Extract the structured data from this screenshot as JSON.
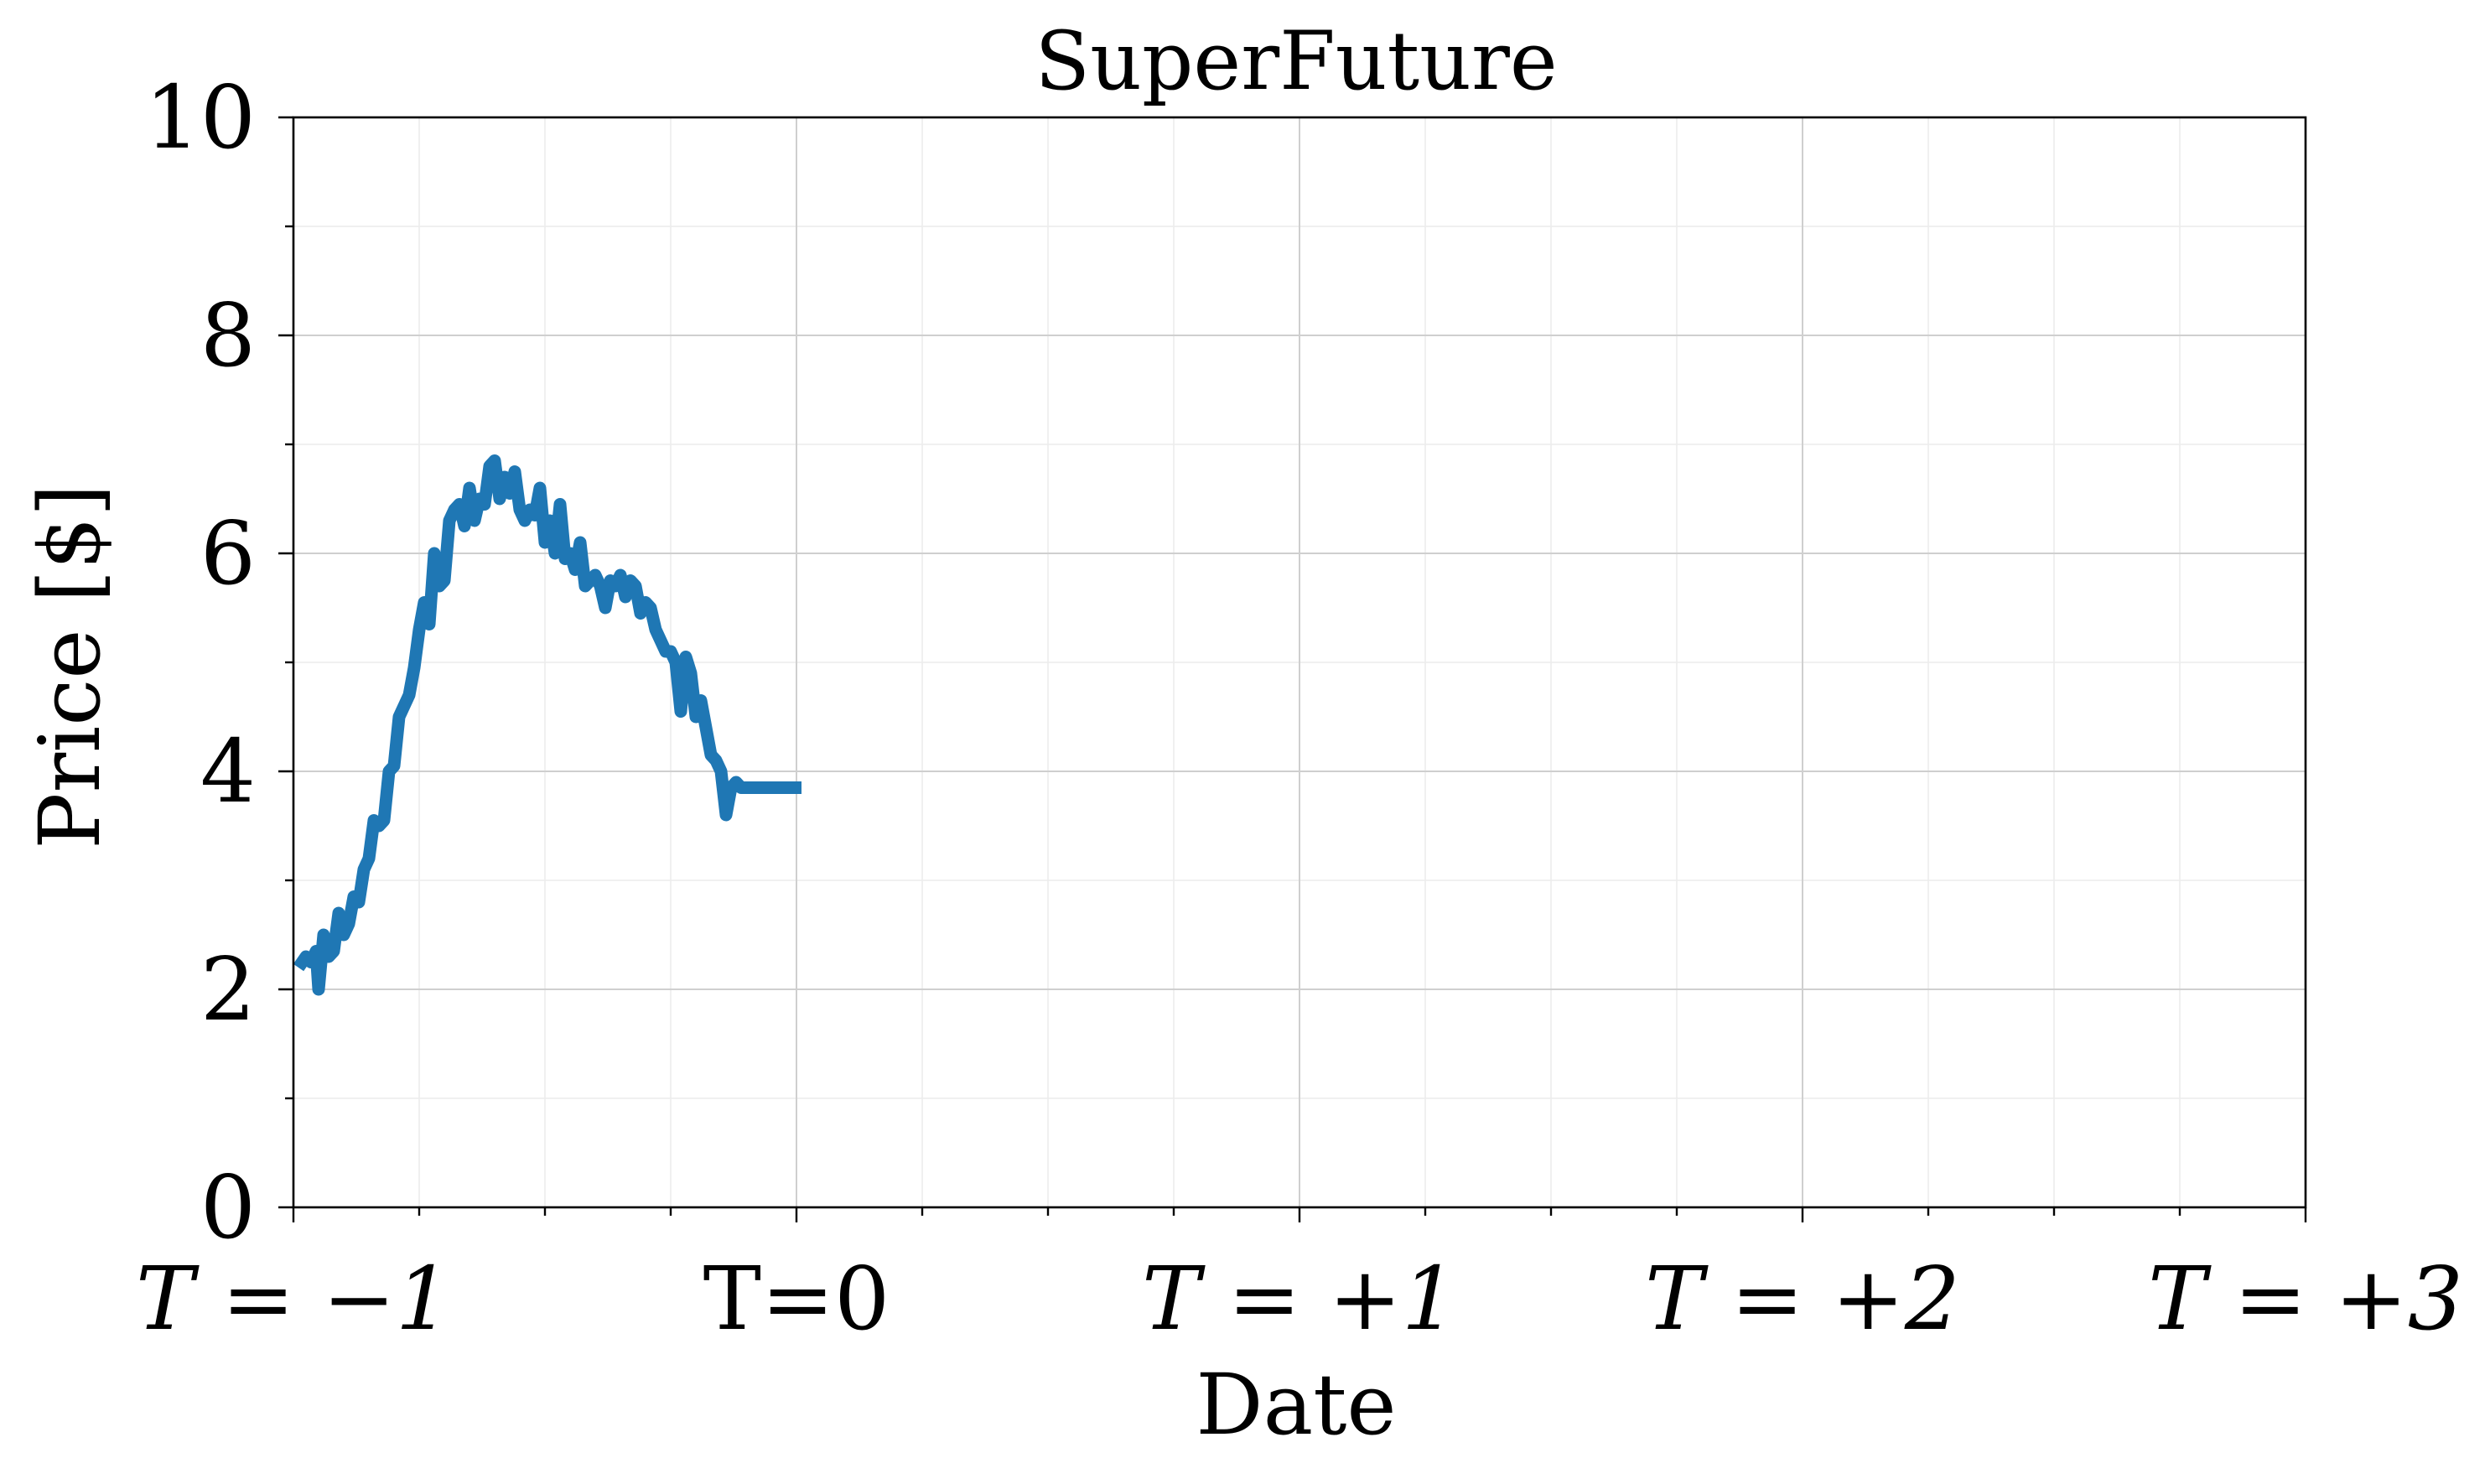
{
  "chart_data": {
    "type": "line",
    "title": "SuperFuture",
    "xlabel": "Date",
    "ylabel": "Price [$]",
    "xlim": [
      -1,
      3
    ],
    "ylim": [
      0,
      10
    ],
    "grid": true,
    "x_ticks": [
      {
        "value": -1,
        "label": "T = −1"
      },
      {
        "value": 0,
        "label": "T=0"
      },
      {
        "value": 1,
        "label": "T = +1"
      },
      {
        "value": 2,
        "label": "T = +2"
      },
      {
        "value": 3,
        "label": "T = +3"
      }
    ],
    "y_ticks": [
      {
        "value": 0,
        "label": "0"
      },
      {
        "value": 2,
        "label": "2"
      },
      {
        "value": 4,
        "label": "4"
      },
      {
        "value": 6,
        "label": "6"
      },
      {
        "value": 8,
        "label": "8"
      },
      {
        "value": 10,
        "label": "10"
      }
    ],
    "series": [
      {
        "color": "#1f77b4",
        "x": [
          -0.99,
          -0.975,
          -0.965,
          -0.955,
          -0.95,
          -0.94,
          -0.93,
          -0.92,
          -0.91,
          -0.9,
          -0.89,
          -0.88,
          -0.87,
          -0.86,
          -0.85,
          -0.84,
          -0.83,
          -0.82,
          -0.81,
          -0.8,
          -0.79,
          -0.78,
          -0.77,
          -0.76,
          -0.75,
          -0.74,
          -0.73,
          -0.72,
          -0.71,
          -0.7,
          -0.69,
          -0.68,
          -0.67,
          -0.66,
          -0.65,
          -0.64,
          -0.63,
          -0.62,
          -0.61,
          -0.6,
          -0.59,
          -0.58,
          -0.57,
          -0.56,
          -0.55,
          -0.54,
          -0.53,
          -0.52,
          -0.51,
          -0.5,
          -0.49,
          -0.48,
          -0.47,
          -0.46,
          -0.45,
          -0.44,
          -0.43,
          -0.42,
          -0.41,
          -0.4,
          -0.39,
          -0.38,
          -0.37,
          -0.36,
          -0.35,
          -0.34,
          -0.33,
          -0.32,
          -0.31,
          -0.3,
          -0.29,
          -0.28,
          -0.27,
          -0.26,
          -0.25,
          -0.24,
          -0.23,
          -0.22,
          -0.21,
          -0.2,
          -0.19,
          -0.18,
          -0.17,
          -0.16,
          -0.15,
          -0.14,
          -0.13,
          -0.12,
          -0.11,
          -0.1,
          -0.09,
          -0.08,
          -0.07,
          -0.06,
          -0.05,
          -0.04,
          -0.03,
          -0.02,
          -0.01,
          0.0,
          0.01
        ],
        "y": [
          2.2,
          2.3,
          2.25,
          2.35,
          2.0,
          2.5,
          2.3,
          2.35,
          2.7,
          2.5,
          2.6,
          2.85,
          2.8,
          3.1,
          3.2,
          3.55,
          3.5,
          3.55,
          4.0,
          4.05,
          4.5,
          4.6,
          4.7,
          4.95,
          5.3,
          5.55,
          5.35,
          6.0,
          5.7,
          5.75,
          6.3,
          6.4,
          6.45,
          6.25,
          6.6,
          6.3,
          6.5,
          6.45,
          6.8,
          6.85,
          6.5,
          6.7,
          6.55,
          6.75,
          6.4,
          6.3,
          6.4,
          6.35,
          6.6,
          6.1,
          6.3,
          6.0,
          6.45,
          5.95,
          6.0,
          5.85,
          6.1,
          5.7,
          5.75,
          5.8,
          5.7,
          5.5,
          5.75,
          5.7,
          5.8,
          5.6,
          5.75,
          5.7,
          5.45,
          5.55,
          5.5,
          5.3,
          5.2,
          5.1,
          5.1,
          5.0,
          4.55,
          5.05,
          4.9,
          4.5,
          4.65,
          4.4,
          4.15,
          4.1,
          4.0,
          3.6,
          3.85,
          3.9,
          3.85,
          3.85,
          3.85,
          3.85,
          3.85,
          3.85,
          3.85,
          3.85,
          3.85,
          3.85,
          3.85,
          3.85,
          3.85
        ]
      }
    ]
  }
}
